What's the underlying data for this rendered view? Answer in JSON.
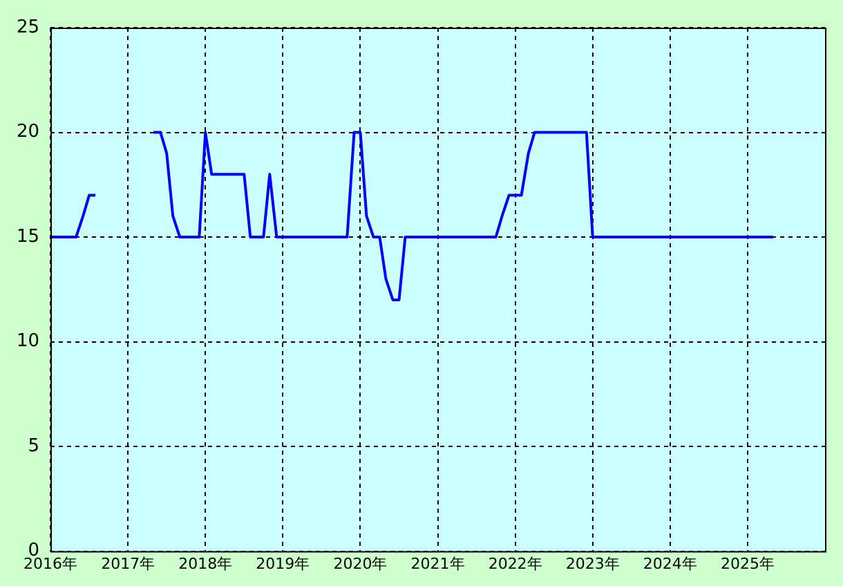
{
  "chart_data": {
    "type": "line",
    "x": [
      2016.0,
      2016.33,
      2016.42,
      2016.5,
      2016.58,
      2016.67,
      2017.33,
      2017.42,
      2017.5,
      2017.58,
      2017.67,
      2017.92,
      2018.0,
      2018.08,
      2018.5,
      2018.58,
      2018.75,
      2018.83,
      2018.92,
      2019.83,
      2019.92,
      2020.0,
      2020.08,
      2020.17,
      2020.25,
      2020.33,
      2020.42,
      2020.5,
      2020.58,
      2021.75,
      2021.83,
      2021.92,
      2022.08,
      2022.17,
      2022.25,
      2022.92,
      2023.0,
      2025.33
    ],
    "series": [
      {
        "color": "#0000ff",
        "values": [
          15,
          15,
          16,
          17,
          17,
          null,
          20,
          20,
          19,
          16,
          15,
          15,
          20,
          18,
          18,
          15,
          15,
          18,
          15,
          15,
          20,
          20,
          16,
          15,
          15,
          13,
          12,
          12,
          15,
          15,
          16,
          17,
          17,
          19,
          20,
          20,
          15,
          15
        ]
      }
    ],
    "xlim": [
      2016,
      2026
    ],
    "xticks": [
      {
        "value": 2016,
        "label": "2016年"
      },
      {
        "value": 2017,
        "label": "2017年"
      },
      {
        "value": 2018,
        "label": "2018年"
      },
      {
        "value": 2019,
        "label": "2019年"
      },
      {
        "value": 2020,
        "label": "2020年"
      },
      {
        "value": 2021,
        "label": "2021年"
      },
      {
        "value": 2022,
        "label": "2022年"
      },
      {
        "value": 2023,
        "label": "2023年"
      },
      {
        "value": 2024,
        "label": "2024年"
      },
      {
        "value": 2025,
        "label": "2025年"
      }
    ],
    "ylim": [
      0,
      25
    ],
    "yticks": [
      0,
      5,
      10,
      15,
      20,
      25
    ],
    "grid": true,
    "marker": "none",
    "legend": false
  }
}
